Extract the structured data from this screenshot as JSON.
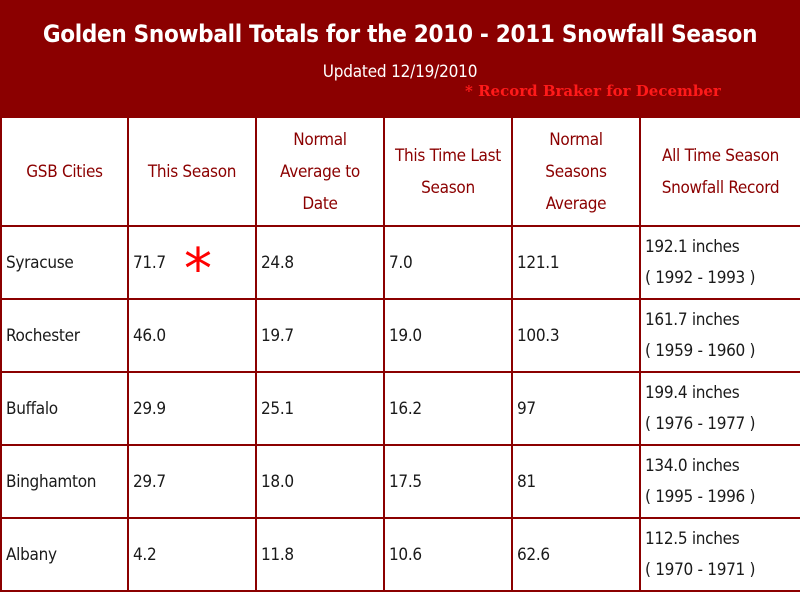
{
  "header": {
    "title": "Golden Snowball Totals for the 2010 - 2011 Snowfall Season",
    "updated": "Updated  12/19/2010",
    "record_note": "* Record Braker for December"
  },
  "table": {
    "columns": [
      "GSB Cities",
      "This Season",
      "Normal Average to Date",
      "This Time Last Season",
      "Normal Seasons Average",
      "All Time Season Snowfall Record"
    ],
    "rows": [
      {
        "city": "Syracuse",
        "this_season": "71.7",
        "normal_to_date": "24.8",
        "last_season": "7.0",
        "season_avg": "121.1",
        "record_amount": "192.1 inches",
        "record_years": "( 1992 - 1993 )"
      },
      {
        "city": "Rochester",
        "this_season": "46.0",
        "normal_to_date": "19.7",
        "last_season": "19.0",
        "season_avg": "100.3",
        "record_amount": "161.7 inches",
        "record_years": "( 1959 - 1960 )"
      },
      {
        "city": "Buffalo",
        "this_season": "29.9",
        "normal_to_date": "25.1",
        "last_season": "16.2",
        "season_avg": "97",
        "record_amount": "199.4 inches",
        "record_years": "( 1976 - 1977 )"
      },
      {
        "city": "Binghamton",
        "this_season": "29.7",
        "normal_to_date": "18.0",
        "last_season": "17.5",
        "season_avg": "81",
        "record_amount": "134.0 inches",
        "record_years": "( 1995 - 1996 )"
      },
      {
        "city": "Albany",
        "this_season": "4.2",
        "normal_to_date": "11.8",
        "last_season": "10.6",
        "season_avg": "62.6",
        "record_amount": "112.5 inches",
        "record_years": "( 1970 - 1971 )"
      }
    ]
  },
  "marker": {
    "symbol": "*"
  },
  "colors": {
    "brand": "#8b0000",
    "accent": "#ff0000"
  }
}
